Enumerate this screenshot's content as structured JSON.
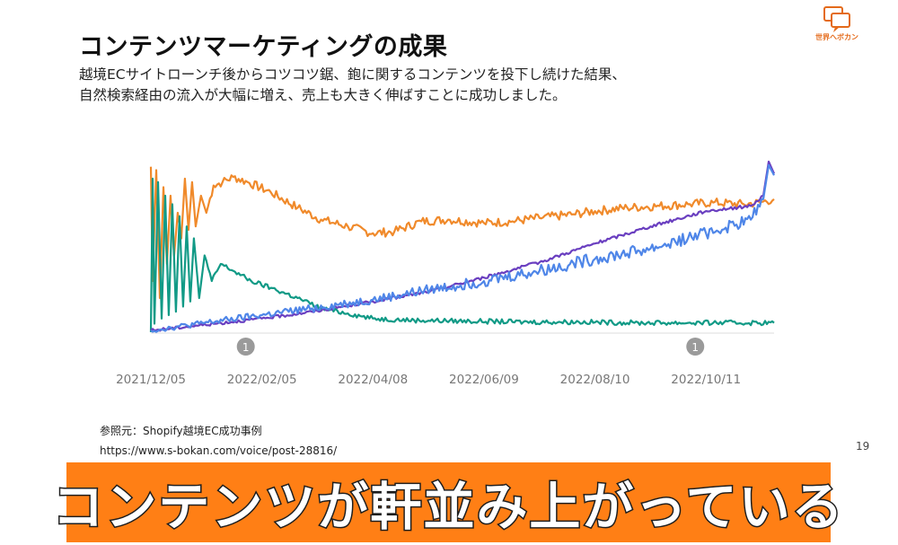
{
  "slide": {
    "title": "コンテンツマーケティングの成果",
    "subtitle_line1": "越境ECサイトローンチ後からコツコツ鋸、鉋に関するコンテンツを投下し続けた結果、",
    "subtitle_line2": "自然検索経由の流入が大幅に増え、売上も大きく伸ばすことに成功しました。",
    "logo_text": "世界へボカン",
    "source_label": "参照元：Shopify越境EC成功事例",
    "source_url": "https://www.s-bokan.com/voice/post-28816/",
    "page_number": "19",
    "banner_text": "コンテンツが軒並み上がっている",
    "colors": {
      "banner": "#ff7f15",
      "logo": "#e46a1a"
    }
  },
  "chart_data": {
    "type": "line",
    "title": "",
    "xlabel": "",
    "ylabel": "",
    "x_tick_labels": [
      "2021/12/05",
      "2022/02/05",
      "2022/04/08",
      "2022/06/09",
      "2022/08/10",
      "2022/10/11"
    ],
    "x_range": [
      "2021/12/05",
      "2022/11/18"
    ],
    "y_axis": "unlabeled relative scale 0-100",
    "ylim": [
      0,
      100
    ],
    "grid": false,
    "legend": "none",
    "annotations": [
      {
        "label": "1",
        "x": "2022/01/27"
      },
      {
        "label": "1",
        "x": "2022/10/05"
      }
    ],
    "series": [
      {
        "color": "#f08a2b",
        "points": [
          [
            "2021/12/05",
            97
          ],
          [
            "2021/12/06",
            30
          ],
          [
            "2021/12/08",
            95
          ],
          [
            "2021/12/10",
            20
          ],
          [
            "2021/12/12",
            85
          ],
          [
            "2021/12/14",
            40
          ],
          [
            "2021/12/16",
            80
          ],
          [
            "2021/12/18",
            45
          ],
          [
            "2021/12/20",
            70
          ],
          [
            "2021/12/22",
            55
          ],
          [
            "2021/12/24",
            90
          ],
          [
            "2021/12/26",
            60
          ],
          [
            "2021/12/28",
            88
          ],
          [
            "2021/12/30",
            62
          ],
          [
            "2022/01/02",
            80
          ],
          [
            "2022/01/05",
            70
          ],
          [
            "2022/01/09",
            86
          ],
          [
            "2022/01/14",
            88
          ],
          [
            "2022/01/20",
            91
          ],
          [
            "2022/01/28",
            88
          ],
          [
            "2022/02/10",
            82
          ],
          [
            "2022/02/25",
            73
          ],
          [
            "2022/03/10",
            66
          ],
          [
            "2022/03/25",
            62
          ],
          [
            "2022/04/08",
            58
          ],
          [
            "2022/04/20",
            59
          ],
          [
            "2022/05/05",
            65
          ],
          [
            "2022/05/20",
            66
          ],
          [
            "2022/06/09",
            64
          ],
          [
            "2022/06/25",
            65
          ],
          [
            "2022/07/10",
            67
          ],
          [
            "2022/07/28",
            69
          ],
          [
            "2022/08/10",
            71
          ],
          [
            "2022/08/28",
            73
          ],
          [
            "2022/09/15",
            74
          ],
          [
            "2022/10/01",
            75
          ],
          [
            "2022/10/15",
            76
          ],
          [
            "2022/11/01",
            75
          ],
          [
            "2022/11/10",
            76
          ],
          [
            "2022/11/18",
            78
          ]
        ]
      },
      {
        "color": "#119a86",
        "points": [
          [
            "2021/12/05",
            0
          ],
          [
            "2021/12/06",
            90
          ],
          [
            "2021/12/07",
            5
          ],
          [
            "2021/12/09",
            88
          ],
          [
            "2021/12/11",
            8
          ],
          [
            "2021/12/13",
            80
          ],
          [
            "2021/12/15",
            10
          ],
          [
            "2021/12/17",
            75
          ],
          [
            "2021/12/19",
            12
          ],
          [
            "2021/12/21",
            68
          ],
          [
            "2021/12/23",
            15
          ],
          [
            "2021/12/25",
            62
          ],
          [
            "2021/12/27",
            18
          ],
          [
            "2021/12/29",
            55
          ],
          [
            "2022/01/01",
            20
          ],
          [
            "2022/01/04",
            45
          ],
          [
            "2022/01/08",
            30
          ],
          [
            "2022/01/13",
            40
          ],
          [
            "2022/01/20",
            36
          ],
          [
            "2022/01/30",
            30
          ],
          [
            "2022/02/10",
            26
          ],
          [
            "2022/02/25",
            20
          ],
          [
            "2022/03/10",
            14
          ],
          [
            "2022/03/25",
            11
          ],
          [
            "2022/04/08",
            8
          ],
          [
            "2022/05/01",
            7
          ],
          [
            "2022/06/01",
            6.5
          ],
          [
            "2022/07/01",
            6
          ],
          [
            "2022/08/01",
            6
          ],
          [
            "2022/09/01",
            5.5
          ],
          [
            "2022/10/01",
            5.5
          ],
          [
            "2022/11/18",
            5.5
          ]
        ]
      },
      {
        "color": "#6a3fc0",
        "points": [
          [
            "2021/12/05",
            1
          ],
          [
            "2022/01/01",
            4
          ],
          [
            "2022/02/05",
            8
          ],
          [
            "2022/03/05",
            12
          ],
          [
            "2022/04/08",
            18
          ],
          [
            "2022/05/10",
            24
          ],
          [
            "2022/06/09",
            32
          ],
          [
            "2022/07/10",
            41
          ],
          [
            "2022/08/10",
            52
          ],
          [
            "2022/09/10",
            62
          ],
          [
            "2022/10/11",
            71
          ],
          [
            "2022/11/05",
            74
          ],
          [
            "2022/11/12",
            80
          ],
          [
            "2022/11/15",
            100
          ],
          [
            "2022/11/18",
            93
          ]
        ]
      },
      {
        "color": "#4f86e8",
        "points": [
          [
            "2021/12/05",
            1
          ],
          [
            "2022/01/01",
            5
          ],
          [
            "2022/02/05",
            10
          ],
          [
            "2022/03/05",
            14
          ],
          [
            "2022/04/08",
            19
          ],
          [
            "2022/05/10",
            25
          ],
          [
            "2022/06/09",
            30
          ],
          [
            "2022/07/10",
            36
          ],
          [
            "2022/08/10",
            43
          ],
          [
            "2022/09/10",
            49
          ],
          [
            "2022/10/11",
            58
          ],
          [
            "2022/11/05",
            66
          ],
          [
            "2022/11/12",
            78
          ],
          [
            "2022/11/15",
            98
          ],
          [
            "2022/11/18",
            92
          ]
        ]
      }
    ]
  }
}
